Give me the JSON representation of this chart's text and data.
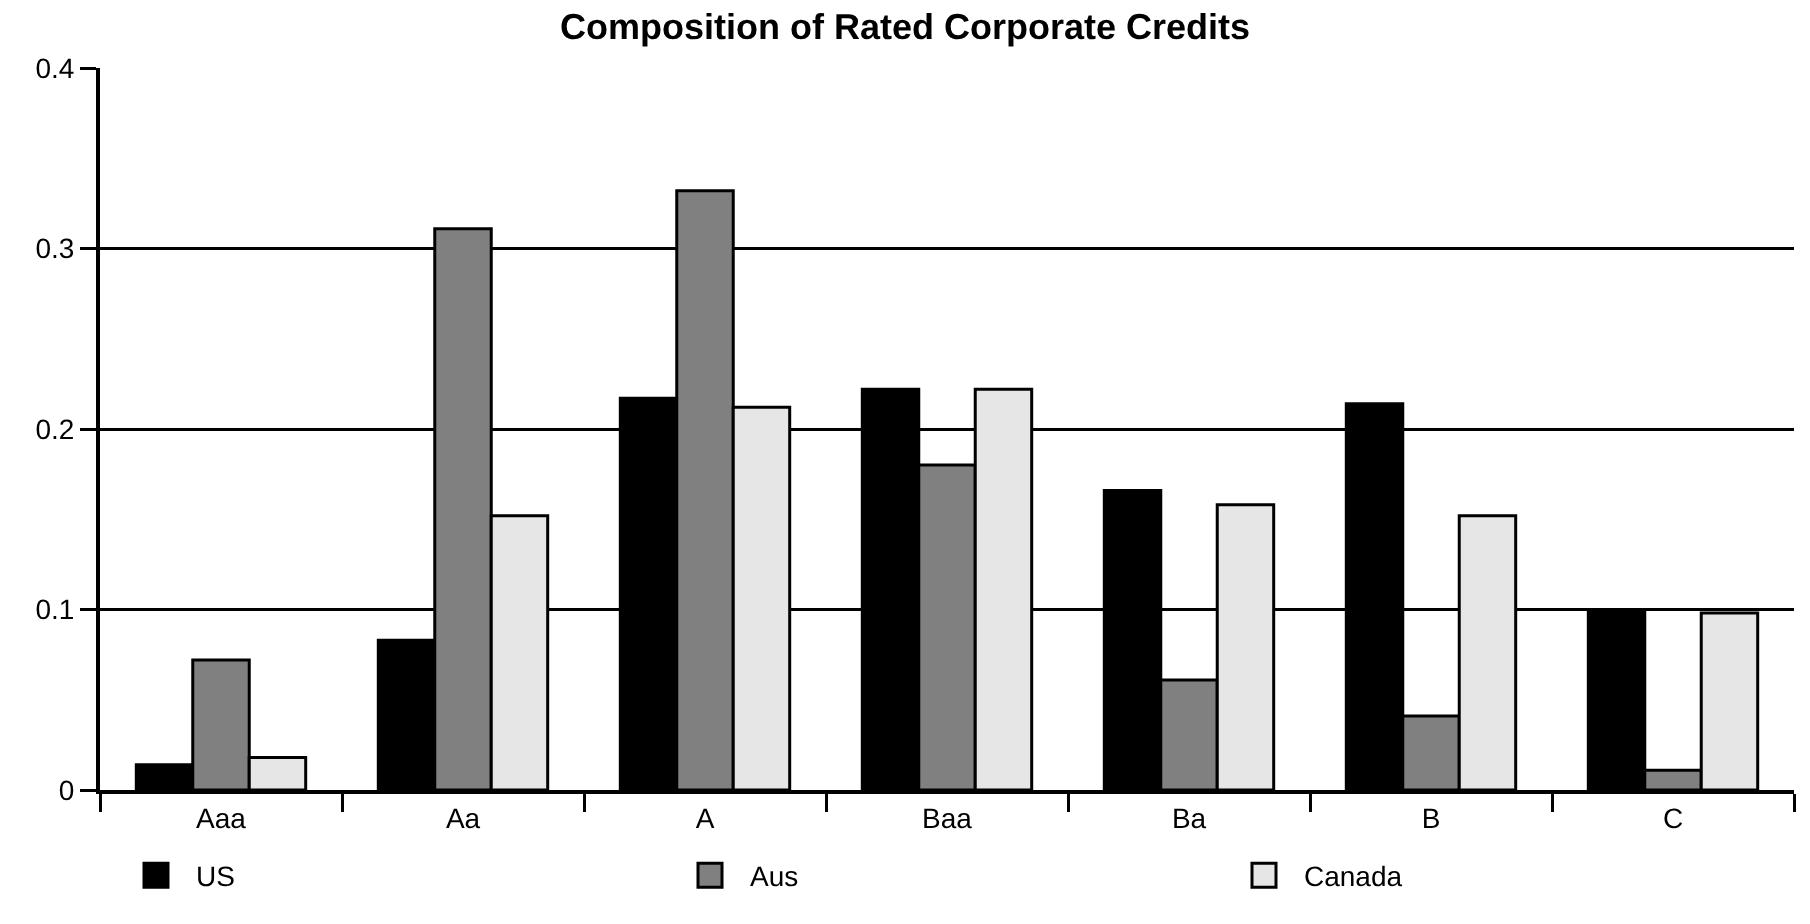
{
  "chart_data": {
    "type": "bar",
    "title": "Composition of Rated Corporate Credits",
    "categories": [
      "Aaa",
      "Aa",
      "A",
      "Baa",
      "Ba",
      "B",
      "C"
    ],
    "series": [
      {
        "name": "US",
        "color": "#000000",
        "values": [
          0.014,
          0.083,
          0.217,
          0.222,
          0.166,
          0.214,
          0.1
        ]
      },
      {
        "name": "Aus",
        "color": "#808080",
        "values": [
          0.072,
          0.311,
          0.332,
          0.18,
          0.061,
          0.041,
          0.011
        ]
      },
      {
        "name": "Canada",
        "color": "#e6e6e6",
        "values": [
          0.018,
          0.152,
          0.212,
          0.222,
          0.158,
          0.152,
          0.098
        ]
      }
    ],
    "ylim": [
      0,
      0.4
    ],
    "yticks": [
      0,
      0.1,
      0.2,
      0.3,
      0.4
    ],
    "grid": "y",
    "legend": "bottom"
  }
}
